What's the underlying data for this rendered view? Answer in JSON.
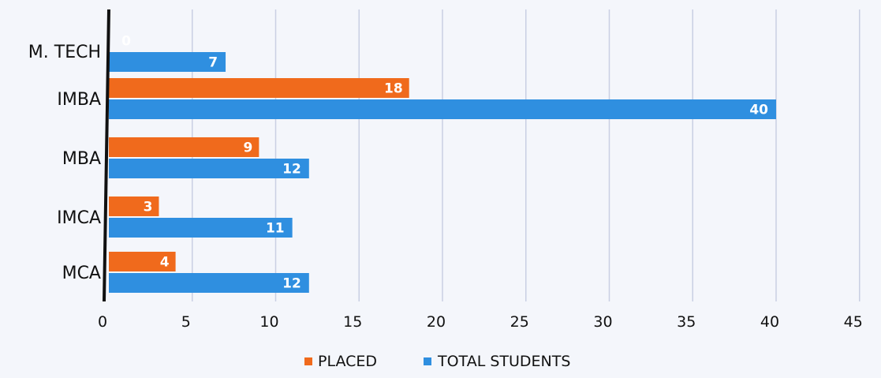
{
  "chart_data": {
    "type": "bar",
    "orientation": "horizontal",
    "categories": [
      "M. TECH",
      "IMBA",
      "MBA",
      "IMCA",
      "MCA"
    ],
    "series": [
      {
        "name": "PLACED",
        "values": [
          0,
          18,
          9,
          3,
          4
        ],
        "color": "#f06a1c"
      },
      {
        "name": "TOTAL STUDENTS",
        "values": [
          7,
          40,
          12,
          11,
          12
        ],
        "color": "#2f8fe0"
      }
    ],
    "xticks": [
      0,
      5,
      10,
      15,
      20,
      25,
      30,
      35,
      40,
      45
    ],
    "xlim": [
      0,
      45
    ],
    "grid": true,
    "legend_position": "bottom"
  }
}
